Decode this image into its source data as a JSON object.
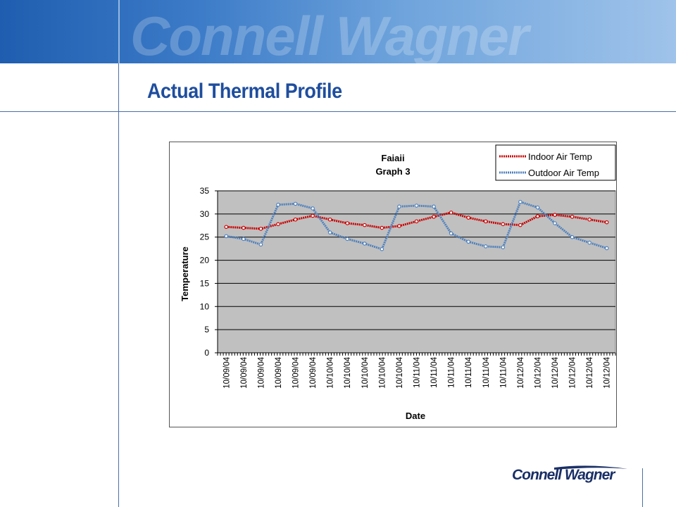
{
  "header": {
    "brand_wordmark": "Connell Wagner"
  },
  "slide": {
    "title": "Actual Thermal Profile"
  },
  "footer": {
    "logo_text": "Connell Wagner"
  },
  "colors": {
    "brand_blue": "#1f4e9e",
    "plot_background": "#c0c0c0",
    "indoor_series": "#cc0000",
    "outdoor_series": "#4f81bd"
  },
  "chart_data": {
    "type": "line",
    "title": "Faiaii",
    "subtitle": "Graph 3",
    "xlabel": "Date",
    "ylabel": "Temperature",
    "ylim": [
      0,
      35
    ],
    "yticks": [
      0,
      5,
      10,
      15,
      20,
      25,
      30,
      35
    ],
    "grid": true,
    "legend_position": "top-right",
    "x_tick_labels": [
      "10/09/04",
      "10/09/04",
      "10/09/04",
      "10/09/04",
      "10/09/04",
      "10/09/04",
      "10/10/04",
      "10/10/04",
      "10/10/04",
      "10/10/04",
      "10/10/04",
      "10/11/04",
      "10/11/04",
      "10/11/04",
      "10/11/04",
      "10/11/04",
      "10/11/04",
      "10/12/04",
      "10/12/04",
      "10/12/04",
      "10/12/04",
      "10/12/04",
      "10/12/04"
    ],
    "x": [
      0,
      1,
      2,
      3,
      4,
      5,
      6,
      7,
      8,
      9,
      10,
      11,
      12,
      13,
      14,
      15,
      16,
      17,
      18,
      19,
      20,
      21,
      22
    ],
    "series": [
      {
        "name": "Indoor Air Temp",
        "color": "#cc0000",
        "values": [
          27.2,
          27.0,
          26.8,
          27.8,
          28.8,
          29.6,
          28.8,
          28.0,
          27.6,
          27.0,
          27.4,
          28.4,
          29.4,
          30.3,
          29.2,
          28.4,
          27.8,
          27.6,
          29.5,
          29.8,
          29.4,
          28.8,
          28.2
        ]
      },
      {
        "name": "Outdoor Air Temp",
        "color": "#4f81bd",
        "values": [
          25.2,
          24.6,
          23.4,
          32.0,
          32.2,
          31.2,
          26.0,
          24.6,
          23.6,
          22.4,
          31.6,
          31.8,
          31.6,
          25.8,
          24.0,
          23.0,
          22.8,
          32.6,
          31.4,
          28.0,
          25.0,
          23.8,
          22.6
        ]
      }
    ]
  }
}
